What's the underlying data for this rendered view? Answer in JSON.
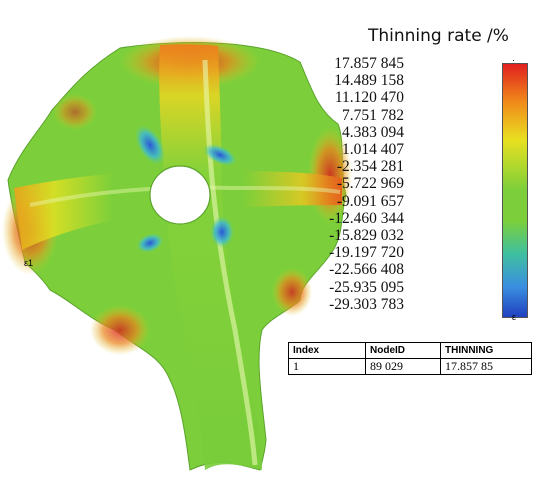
{
  "legend": {
    "title": "Thinning rate /%",
    "ticks": [
      "17.857 845",
      "14.489 158",
      "11.120 470",
      "7.751 782",
      "4.383 094",
      "1.014 407",
      "-2.354 281",
      "-5.722 969",
      "-9.091 657",
      "-12.460 344",
      "-15.829 032",
      "-19.197 720",
      "-22.566 408",
      "-25.935 095",
      "-29.303 783"
    ],
    "max_marker": "·",
    "min_marker": "ε"
  },
  "probe_table": {
    "headers": [
      "Index",
      "NodeID",
      "THINNING"
    ],
    "rows": [
      [
        "1",
        "89 029",
        "17.857 85"
      ]
    ]
  },
  "part_label": "ε1",
  "colors": {
    "max": "#e02020",
    "high": "#f08a1a",
    "mid_high": "#e8e020",
    "mid": "#7ccf3a",
    "low": "#3fc0a0",
    "lower": "#3a8fe0",
    "min": "#2040c0"
  }
}
